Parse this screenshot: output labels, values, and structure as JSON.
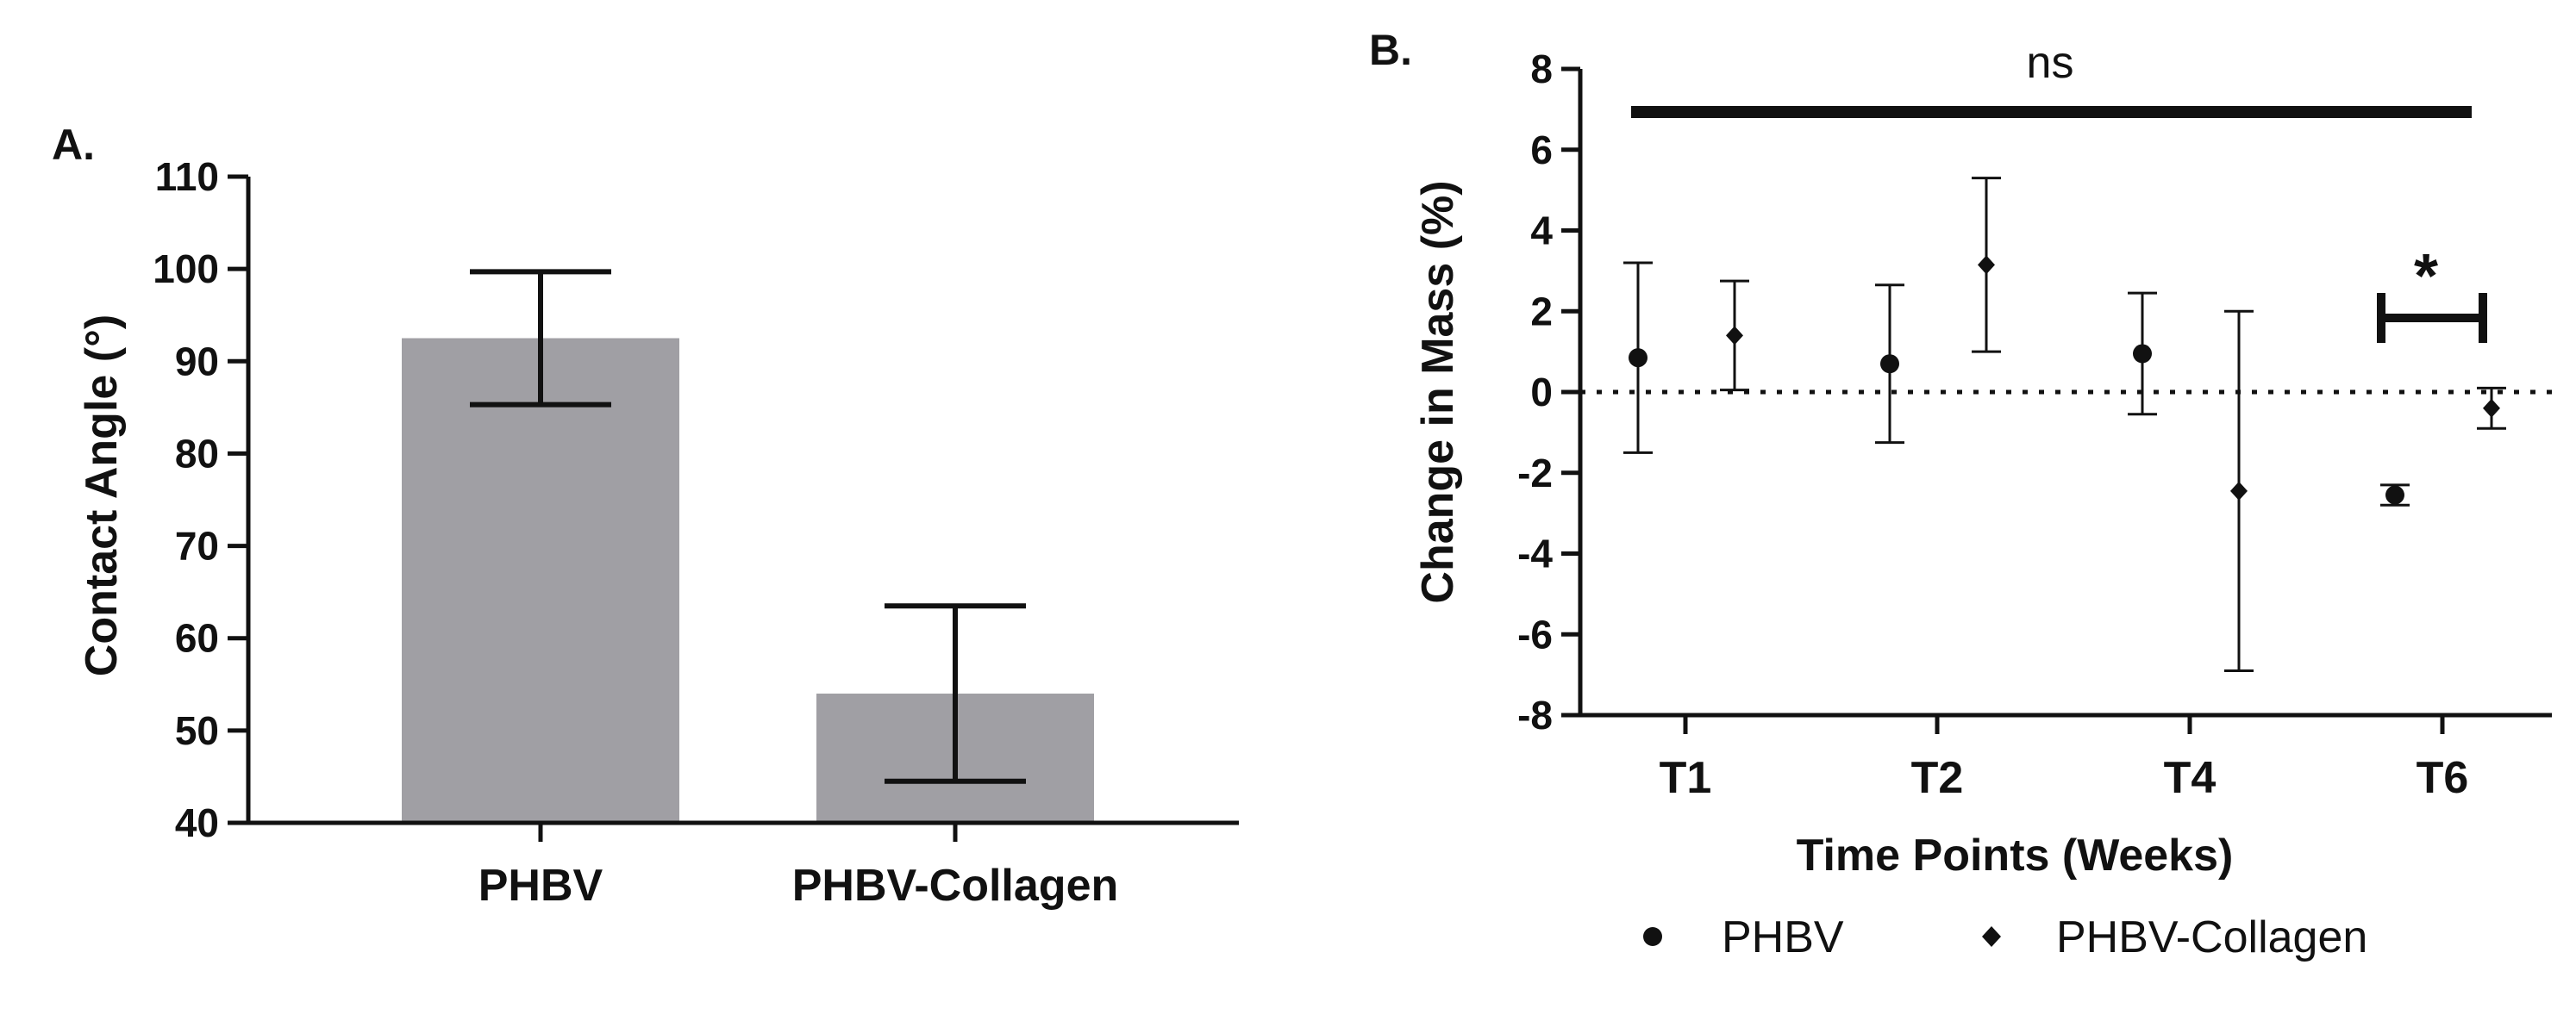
{
  "chart_data": [
    {
      "panel": "A.",
      "type": "bar",
      "categories": [
        "PHBV",
        "PHBV-Collagen"
      ],
      "values": [
        92.5,
        54.0
      ],
      "error": [
        7.2,
        9.5
      ],
      "ylabel": "Contact Angle (°)",
      "ylim": [
        40,
        110
      ],
      "yticks": [
        "40",
        "50",
        "60",
        "70",
        "80",
        "90",
        "100",
        "110"
      ],
      "bar_color": "#a09fa4",
      "grid": false
    },
    {
      "panel": "B.",
      "type": "scatter",
      "categories": [
        "T1",
        "T2",
        "T4",
        "T6"
      ],
      "xlabel": "Time Points (Weeks)",
      "ylabel": "Change in Mass (%)",
      "ylim": [
        -8,
        8
      ],
      "yticks": [
        "-8",
        "-6",
        "-4",
        "-2",
        "0",
        "2",
        "4",
        "6",
        "8"
      ],
      "reference_line": 0,
      "series": [
        {
          "name": "PHBV",
          "marker": "circle",
          "values": [
            0.85,
            0.7,
            0.95,
            -2.55
          ],
          "error_low": [
            2.35,
            1.95,
            1.5,
            0.25
          ],
          "error_high": [
            2.35,
            1.95,
            1.5,
            0.25
          ]
        },
        {
          "name": "PHBV-Collagen",
          "marker": "diamond",
          "values": [
            1.4,
            3.15,
            -2.45,
            -0.4
          ],
          "error_low": [
            1.35,
            2.15,
            4.45,
            0.5
          ],
          "error_high": [
            1.35,
            2.15,
            4.45,
            0.5
          ]
        }
      ],
      "annotations": {
        "overall": "ns",
        "t6": "*"
      },
      "legend_position": "bottom",
      "grid": false
    }
  ]
}
